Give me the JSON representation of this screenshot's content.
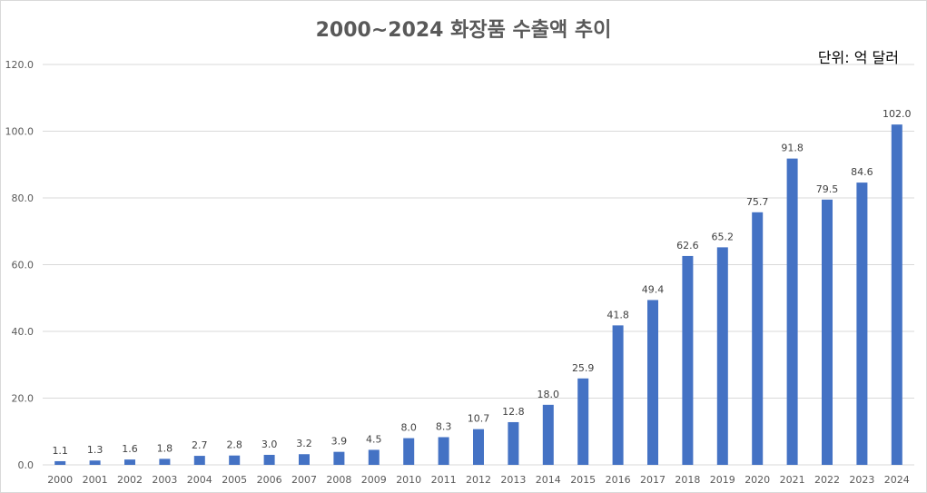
{
  "chart_data": {
    "type": "bar",
    "title": "2000~2024 화장품 수출액 추이",
    "unit_note": "단위: 억 달러",
    "xlabel": "",
    "ylabel": "",
    "categories": [
      "2000",
      "2001",
      "2002",
      "2003",
      "2004",
      "2005",
      "2006",
      "2007",
      "2008",
      "2009",
      "2010",
      "2011",
      "2012",
      "2013",
      "2014",
      "2015",
      "2016",
      "2017",
      "2018",
      "2019",
      "2020",
      "2021",
      "2022",
      "2023",
      "2024"
    ],
    "values": [
      1.1,
      1.3,
      1.6,
      1.8,
      2.7,
      2.8,
      3.0,
      3.2,
      3.9,
      4.5,
      8.0,
      8.3,
      10.7,
      12.8,
      18.0,
      25.9,
      41.8,
      49.4,
      62.6,
      65.2,
      75.7,
      91.8,
      79.5,
      84.6,
      102.0
    ],
    "value_labels": [
      "1.1",
      "1.3",
      "1.6",
      "1.8",
      "2.7",
      "2.8",
      "3.0",
      "3.2",
      "3.9",
      "4.5",
      "8.0",
      "8.3",
      "10.7",
      "12.8",
      "18.0",
      "25.9",
      "41.8",
      "49.4",
      "62.6",
      "65.2",
      "75.7",
      "91.8",
      "79.5",
      "84.6",
      "102.0"
    ],
    "ylim": [
      0,
      120
    ],
    "yticks": [
      "0.0",
      "20.0",
      "40.0",
      "60.0",
      "80.0",
      "100.0",
      "120.0"
    ],
    "grid": true,
    "legend": "none",
    "bar_color": "#4472c4",
    "grid_color": "#d9d9d9"
  }
}
